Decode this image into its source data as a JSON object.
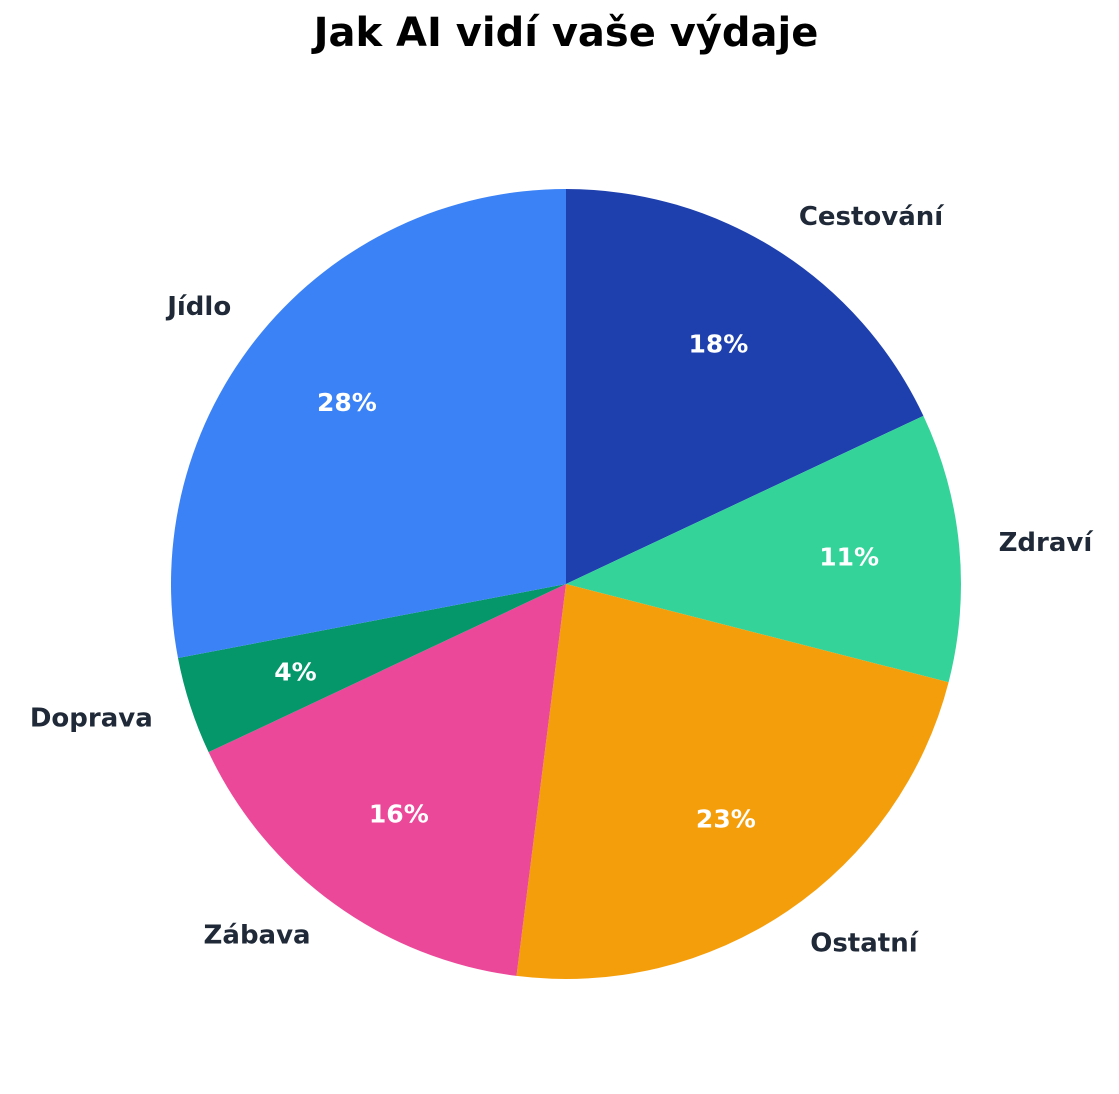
{
  "chart_data": {
    "type": "pie",
    "title": "Jak AI vidí vaše výdaje",
    "start_angle_deg": 90,
    "direction": "clockwise",
    "categories": [
      "Cestování",
      "Zdraví",
      "Ostatní",
      "Zábava",
      "Doprava",
      "Jídlo"
    ],
    "values": [
      18,
      11,
      23,
      16,
      4,
      28
    ],
    "labels": [
      "18%",
      "11%",
      "23%",
      "16%",
      "4%",
      "28%"
    ],
    "colors": [
      "#1e40af",
      "#34d399",
      "#f59e0b",
      "#ec4899",
      "#059669",
      "#3b82f6"
    ],
    "unit": "%"
  }
}
